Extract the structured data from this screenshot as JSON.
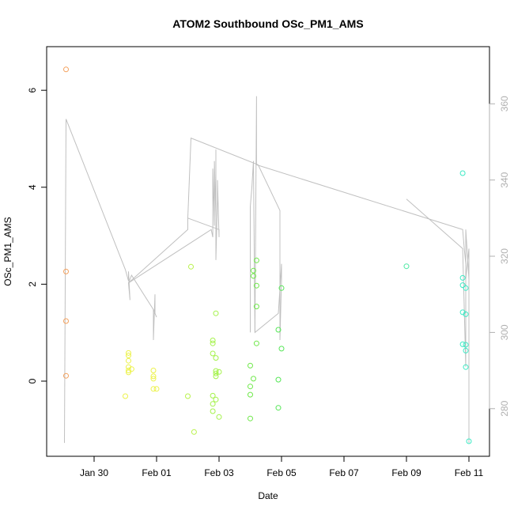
{
  "chart_data": {
    "type": "scatter",
    "title": "ATOM2 Southbound OSc_PM1_AMS",
    "xlabel": "Date",
    "ylabel": "OSc_PM1_AMS",
    "x_ticks": [
      "Jan 30",
      "Feb 01",
      "Feb 03",
      "Feb 05",
      "Feb 07",
      "Feb 09",
      "Feb 11"
    ],
    "y_ticks": [
      0,
      2,
      4,
      6
    ],
    "y_right_ticks": [
      280,
      300,
      320,
      340,
      360
    ],
    "ylim": [
      -1.55,
      6.9
    ],
    "y_right_lim": [
      267.5,
      375
    ],
    "grid": false,
    "points_series": {
      "name": "OSc_PM1_AMS",
      "x_days": [
        29.1,
        29.1,
        29.1,
        29.1,
        31.0,
        31.1,
        31.1,
        31.1,
        31.1,
        31.1,
        31.1,
        31.2,
        31.9,
        31.9,
        31.9,
        31.9,
        32.0,
        33.0,
        33.1,
        33.2,
        33.8,
        33.8,
        33.8,
        33.8,
        33.8,
        33.8,
        33.9,
        33.9,
        33.9,
        33.9,
        33.9,
        33.9,
        34.0,
        34.0,
        35.0,
        35.0,
        35.0,
        35.0,
        35.1,
        35.1,
        35.1,
        35.2,
        35.2,
        35.2,
        35.2,
        35.9,
        35.9,
        35.9,
        36.0,
        36.0,
        40.0,
        41.8,
        41.8,
        41.8,
        41.8,
        41.8,
        41.9,
        41.9,
        41.9,
        41.9,
        41.9,
        42.0
      ],
      "values": [
        6.43,
        2.26,
        1.24,
        0.11,
        -0.31,
        0.53,
        0.58,
        0.42,
        0.29,
        0.22,
        0.18,
        0.25,
        0.22,
        0.1,
        0.05,
        -0.16,
        -0.16,
        -0.31,
        2.36,
        -1.05,
        0.78,
        0.84,
        0.57,
        -0.3,
        -0.47,
        -0.62,
        0.48,
        0.21,
        0.16,
        -0.38,
        1.4,
        0.1,
        -0.74,
        0.19,
        0.32,
        -0.11,
        -0.28,
        -0.77,
        2.28,
        2.17,
        0.05,
        2.49,
        1.54,
        0.78,
        1.97,
        -0.55,
        0.03,
        1.06,
        0.67,
        1.92,
        2.37,
        4.29,
        2.13,
        1.98,
        1.42,
        0.76,
        0.75,
        0.63,
        1.38,
        0.29,
        1.92,
        -1.24
      ],
      "colors": [
        "#f4a05c",
        "#f4a05c",
        "#f4a05c",
        "#f4a05c",
        "#ecf24a",
        "#ecf24a",
        "#ecf24a",
        "#ecf24a",
        "#ecf24a",
        "#ecf24a",
        "#ecf24a",
        "#ecf24a",
        "#ecf24a",
        "#ecf24a",
        "#ecf24a",
        "#ecf24a",
        "#ecf24a",
        "#b8f24a",
        "#b8f24a",
        "#b8f24a",
        "#a4f24a",
        "#a4f24a",
        "#a4f24a",
        "#a4f24a",
        "#a4f24a",
        "#a4f24a",
        "#a4f24a",
        "#a4f24a",
        "#a4f24a",
        "#a4f24a",
        "#a4f24a",
        "#a4f24a",
        "#a4f24a",
        "#a4f24a",
        "#6fe84a",
        "#6fe84a",
        "#6fe84a",
        "#6fe84a",
        "#6fe84a",
        "#6fe84a",
        "#6fe84a",
        "#6fe84a",
        "#6fe84a",
        "#6fe84a",
        "#6fe84a",
        "#56e657",
        "#56e657",
        "#56e657",
        "#56e657",
        "#56e657",
        "#4ce8a3",
        "#3eeac5",
        "#3eeac5",
        "#3eeac5",
        "#3eeac5",
        "#3eeac5",
        "#3eeac5",
        "#3eeac5",
        "#3eeac5",
        "#3eeac5",
        "#3eeac5",
        "#3eeac5"
      ]
    },
    "line_series": {
      "axis": "right",
      "color": "#c0c0c0",
      "x_days": [
        29.05,
        29.05,
        29.1,
        29.1,
        31.0,
        31.0,
        31.1,
        31.1,
        31.15,
        31.1,
        31.2,
        31.9,
        31.9,
        31.9,
        31.95,
        31.95,
        32.0,
        32.0,
        33.0,
        33.05,
        33.1,
        33.1,
        33.75,
        33.8,
        33.8,
        33.8,
        33.85,
        33.85,
        33.9,
        33.9,
        33.9,
        33.95,
        33.95,
        34.0,
        34.0,
        35.0,
        35.0,
        35.05,
        35.1,
        35.15,
        35.2,
        35.2,
        35.25,
        35.9,
        36.0,
        36.0,
        36.05,
        35.95,
        35.95,
        41.9,
        41.85,
        41.9,
        42.0,
        42.0,
        42.05,
        41.9,
        42.0,
        40.0
      ],
      "values": [
        271,
        271,
        356,
        356,
        316.5,
        316.5,
        313.5,
        316,
        308.5,
        313,
        315,
        306,
        306,
        298,
        310,
        305,
        305,
        304,
        330,
        330,
        351,
        351,
        340,
        325,
        343,
        328,
        345,
        330,
        348,
        319,
        335,
        340,
        325,
        327,
        327,
        300,
        333,
        338,
        345,
        300,
        362,
        362,
        344,
        332,
        332,
        318,
        314,
        314,
        298,
        327,
        322,
        318,
        314,
        322,
        271,
        291,
        327,
        335
      ]
    },
    "line_path_segments": [
      [
        [
          29.05,
          271
        ],
        [
          29.1,
          356
        ],
        [
          31.0,
          316.5
        ],
        [
          31.1,
          313.5
        ],
        [
          31.1,
          316
        ],
        [
          31.15,
          308.5
        ],
        [
          31.1,
          313
        ],
        [
          31.2,
          315
        ],
        [
          31.9,
          306
        ],
        [
          31.9,
          298
        ],
        [
          31.95,
          310
        ],
        [
          31.95,
          305
        ],
        [
          32.0,
          304
        ],
        [
          31.9,
          306
        ]
      ],
      [
        [
          31.1,
          313
        ],
        [
          33.0,
          327
        ],
        [
          33.0,
          330
        ],
        [
          33.1,
          351
        ],
        [
          35.25,
          344
        ],
        [
          35.95,
          332
        ],
        [
          35.95,
          298
        ],
        [
          36.0,
          314
        ],
        [
          36.0,
          318
        ],
        [
          35.9,
          305
        ],
        [
          35.15,
          300
        ],
        [
          35.2,
          362
        ],
        [
          35.2,
          344
        ],
        [
          41.8,
          327
        ],
        [
          41.85,
          322
        ],
        [
          41.9,
          318
        ],
        [
          41.9,
          314
        ],
        [
          42.0,
          322
        ],
        [
          42.0,
          271
        ]
      ],
      [
        [
          31.1,
          313
        ],
        [
          33.75,
          327
        ],
        [
          33.8,
          325
        ],
        [
          33.8,
          343
        ],
        [
          33.85,
          328
        ],
        [
          33.85,
          345
        ],
        [
          33.9,
          330
        ],
        [
          33.9,
          348
        ],
        [
          33.9,
          319
        ],
        [
          33.95,
          335
        ],
        [
          33.95,
          340
        ],
        [
          34.0,
          325
        ],
        [
          34.0,
          327
        ],
        [
          33.0,
          330
        ]
      ],
      [
        [
          35.0,
          300
        ],
        [
          35.0,
          333
        ],
        [
          35.05,
          338
        ],
        [
          35.1,
          345
        ],
        [
          35.15,
          300
        ]
      ],
      [
        [
          40.0,
          335
        ],
        [
          41.8,
          322
        ],
        [
          41.9,
          291
        ],
        [
          41.9,
          327
        ],
        [
          42.0,
          314
        ]
      ]
    ]
  }
}
